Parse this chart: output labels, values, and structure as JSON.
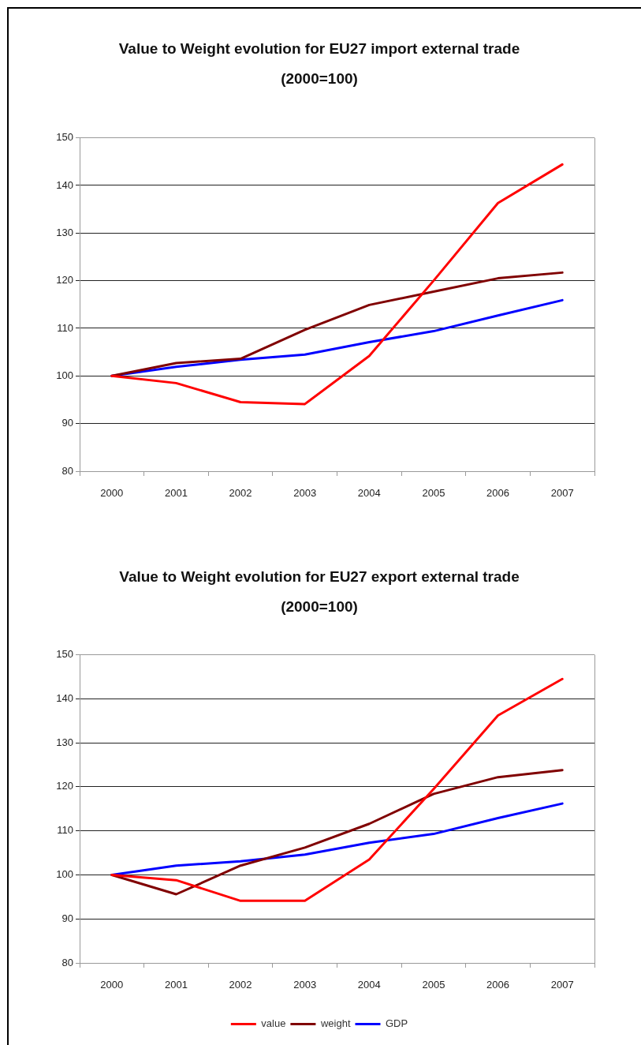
{
  "chart_data": [
    {
      "type": "line",
      "title": "Value to Weight evolution for EU27 import external trade",
      "subtitle": "(2000=100)",
      "categories": [
        "2000",
        "2001",
        "2002",
        "2003",
        "2004",
        "2005",
        "2006",
        "2007"
      ],
      "series": [
        {
          "color": "#ff0000",
          "values": [
            100,
            98.5,
            94.5,
            94.1,
            104.2,
            120,
            136.3,
            144.4
          ]
        },
        {
          "color": "#800000",
          "values": [
            100,
            102.7,
            103.6,
            109.7,
            114.9,
            117.7,
            120.5,
            121.7
          ]
        },
        {
          "color": "#0000ff",
          "values": [
            100,
            101.9,
            103.4,
            104.5,
            107.1,
            109.4,
            112.7,
            115.9
          ]
        }
      ],
      "ylim": [
        80,
        150
      ],
      "yticks": [
        80,
        90,
        100,
        110,
        120,
        130,
        140,
        150
      ],
      "grid": "y",
      "legend": false,
      "marker": "none",
      "line_style": "solid"
    },
    {
      "type": "line",
      "title": "Value to Weight evolution for EU27 export external trade",
      "subtitle": "(2000=100)",
      "categories": [
        "2000",
        "2001",
        "2002",
        "2003",
        "2004",
        "2005",
        "2006",
        "2007"
      ],
      "series": [
        {
          "name": "value",
          "color": "#ff0000",
          "values": [
            100,
            98.8,
            94.1,
            94.1,
            103.5,
            119.5,
            136.2,
            144.5
          ]
        },
        {
          "name": "weight",
          "color": "#800000",
          "values": [
            100,
            95.6,
            102.1,
            106.2,
            111.6,
            118.4,
            122.2,
            123.8
          ]
        },
        {
          "name": "GDP",
          "color": "#0000ff",
          "values": [
            100,
            102.1,
            103.1,
            104.6,
            107.3,
            109.3,
            112.9,
            116.2
          ]
        }
      ],
      "ylim": [
        80,
        150
      ],
      "yticks": [
        80,
        90,
        100,
        110,
        120,
        130,
        140,
        150
      ],
      "grid": "y",
      "legend": "bottom",
      "marker": "none",
      "line_style": "solid"
    }
  ]
}
